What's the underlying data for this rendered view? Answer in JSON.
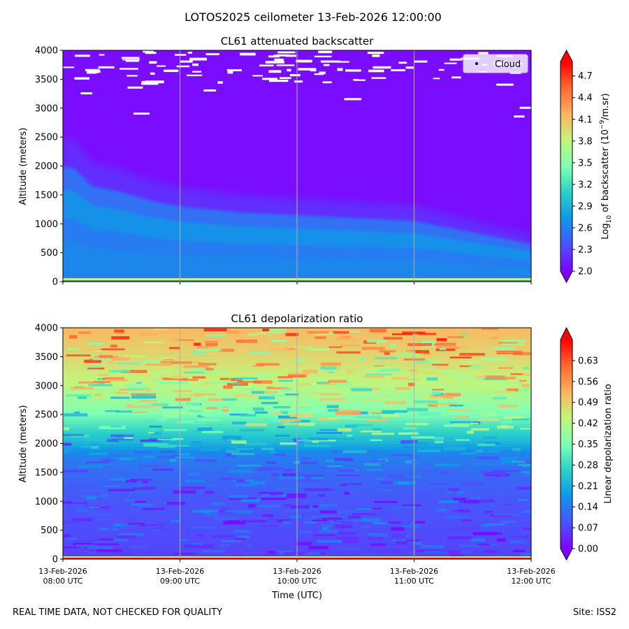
{
  "figure": {
    "suptitle": "LOTOS2025 ceilometer 13-Feb-2026 12:00:00",
    "footer_left": "REAL TIME DATA, NOT CHECKED FOR QUALITY",
    "footer_right": "Site: ISS2"
  },
  "chart_data": [
    {
      "type": "heatmap",
      "title": "CL61 attenuated backscatter",
      "ylabel": "Altitude (meters)",
      "xlabel": "",
      "ylim": [
        0,
        4000
      ],
      "yticks": [
        0,
        500,
        1000,
        1500,
        2000,
        2500,
        3000,
        3500,
        4000
      ],
      "xticks": [
        {
          "date": "13-Feb-2026",
          "time": "08:00 UTC"
        },
        {
          "date": "13-Feb-2026",
          "time": "09:00 UTC"
        },
        {
          "date": "13-Feb-2026",
          "time": "10:00 UTC"
        },
        {
          "date": "13-Feb-2026",
          "time": "11:00 UTC"
        },
        {
          "date": "13-Feb-2026",
          "time": "12:00 UTC"
        }
      ],
      "show_xtick_labels": false,
      "grid": "x",
      "legend": {
        "entries": [
          "Cloud"
        ],
        "position": "top-right"
      },
      "colorbar": {
        "label_prefix": "Log",
        "label_sub": "10",
        "label_mid": " of backscatter (10",
        "label_sup": "−9",
        "label_suffix": "/m.sr)",
        "range": [
          2.0,
          4.9
        ],
        "ticks": [
          "2.0",
          "2.3",
          "2.6",
          "2.9",
          "3.2",
          "3.5",
          "3.8",
          "4.1",
          "4.4",
          "4.7"
        ],
        "colormap": "rainbow",
        "extend": "both"
      },
      "boundary_layer_top_m": [
        [
          0,
          2000
        ],
        [
          0.1,
          1950
        ],
        [
          0.25,
          1650
        ],
        [
          0.5,
          1550
        ],
        [
          0.75,
          1400
        ],
        [
          1.0,
          1300
        ],
        [
          1.5,
          1200
        ],
        [
          2.0,
          1150
        ],
        [
          2.5,
          1100
        ],
        [
          3.0,
          1050
        ],
        [
          3.5,
          850
        ],
        [
          4.0,
          650
        ]
      ],
      "clouds_approx": [
        {
          "t": 0.15,
          "alt": 3900
        },
        {
          "t": 0.35,
          "alt": 3700
        },
        {
          "t": 0.75,
          "alt": 3950
        },
        {
          "t": 1.05,
          "alt": 3800
        },
        {
          "t": 1.45,
          "alt": 3650
        },
        {
          "t": 1.75,
          "alt": 3500
        },
        {
          "t": 1.95,
          "alt": 3900
        },
        {
          "t": 2.25,
          "alt": 3800
        },
        {
          "t": 2.65,
          "alt": 3950
        },
        {
          "t": 2.85,
          "alt": 3650
        },
        {
          "t": 3.05,
          "alt": 3800
        },
        {
          "t": 3.45,
          "alt": 3850
        },
        {
          "t": 3.75,
          "alt": 3400
        },
        {
          "t": 3.9,
          "alt": 2850
        },
        {
          "t": 0.6,
          "alt": 3350
        },
        {
          "t": 1.25,
          "alt": 3300
        },
        {
          "t": 2.45,
          "alt": 3150
        },
        {
          "t": 0.2,
          "alt": 3250
        },
        {
          "t": 0.65,
          "alt": 2900
        },
        {
          "t": 3.95,
          "alt": 3000
        }
      ]
    },
    {
      "type": "heatmap",
      "title": "CL61 depolarization ratio",
      "ylabel": "Altitude (meters)",
      "xlabel": "Time (UTC)",
      "ylim": [
        0,
        4000
      ],
      "yticks": [
        0,
        500,
        1000,
        1500,
        2000,
        2500,
        3000,
        3500,
        4000
      ],
      "xticks": [
        {
          "date": "13-Feb-2026",
          "time": "08:00 UTC"
        },
        {
          "date": "13-Feb-2026",
          "time": "09:00 UTC"
        },
        {
          "date": "13-Feb-2026",
          "time": "10:00 UTC"
        },
        {
          "date": "13-Feb-2026",
          "time": "11:00 UTC"
        },
        {
          "date": "13-Feb-2026",
          "time": "12:00 UTC"
        }
      ],
      "show_xtick_labels": true,
      "grid": "x",
      "colorbar": {
        "label": "Linear depolarization ratio",
        "range": [
          0.0,
          0.7
        ],
        "ticks": [
          "0.00",
          "0.07",
          "0.14",
          "0.21",
          "0.28",
          "0.35",
          "0.42",
          "0.49",
          "0.56",
          "0.63"
        ],
        "colormap": "rainbow",
        "extend": "both"
      },
      "depol_profile": [
        [
          0,
          0.07
        ],
        [
          500,
          0.08
        ],
        [
          1000,
          0.09
        ],
        [
          1500,
          0.12
        ],
        [
          1800,
          0.15
        ],
        [
          2000,
          0.22
        ],
        [
          2500,
          0.35
        ],
        [
          3000,
          0.43
        ],
        [
          3500,
          0.48
        ],
        [
          4000,
          0.52
        ]
      ]
    }
  ]
}
